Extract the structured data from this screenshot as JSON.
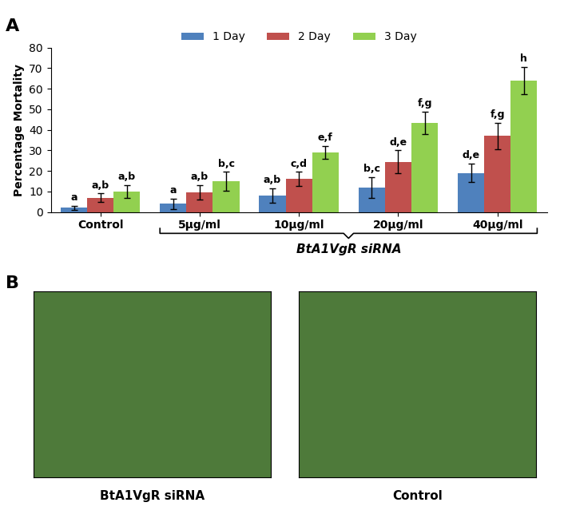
{
  "chart_data": {
    "type": "bar",
    "y_label": "Percentage Mortality",
    "categories": [
      "Control",
      "5µg/ml",
      "10µg/ml",
      "20µg/ml",
      "40µg/ml"
    ],
    "series": [
      {
        "name": "1 Day",
        "color": "#4f81bd",
        "values": [
          2,
          4,
          8,
          12,
          19
        ],
        "errors": [
          1,
          2.5,
          3.5,
          5,
          4.5
        ],
        "letters": [
          "a",
          "a",
          "a,b",
          "b,c",
          "d,e"
        ]
      },
      {
        "name": "2 Day",
        "color": "#c0504d",
        "values": [
          7,
          9.5,
          16,
          24.5,
          37
        ],
        "errors": [
          2,
          3.5,
          3.5,
          5.5,
          6.5
        ],
        "letters": [
          "a,b",
          "a,b",
          "c,d",
          "d,e",
          "f,g"
        ]
      },
      {
        "name": "3 Day",
        "color": "#92d050",
        "values": [
          10,
          15,
          29,
          43.5,
          64
        ],
        "errors": [
          3,
          4.5,
          3,
          5.5,
          6.5
        ],
        "letters": [
          "a,b",
          "b,c",
          "e,f",
          "f,g",
          "h"
        ]
      }
    ],
    "ylim": [
      0,
      80
    ],
    "yticks": [
      0,
      10,
      20,
      30,
      40,
      50,
      60,
      70,
      80
    ],
    "legend": "upper center",
    "annotations": [
      {
        "text": "BtA1VgR siRNA",
        "categories": [
          "5µg/ml",
          "10µg/ml",
          "20µg/ml",
          "40µg/ml"
        ]
      }
    ]
  },
  "panel_labels": [
    "A",
    "B"
  ],
  "images": [
    {
      "caption": "BtA1VgR siRNA"
    },
    {
      "caption": "Control"
    }
  ]
}
